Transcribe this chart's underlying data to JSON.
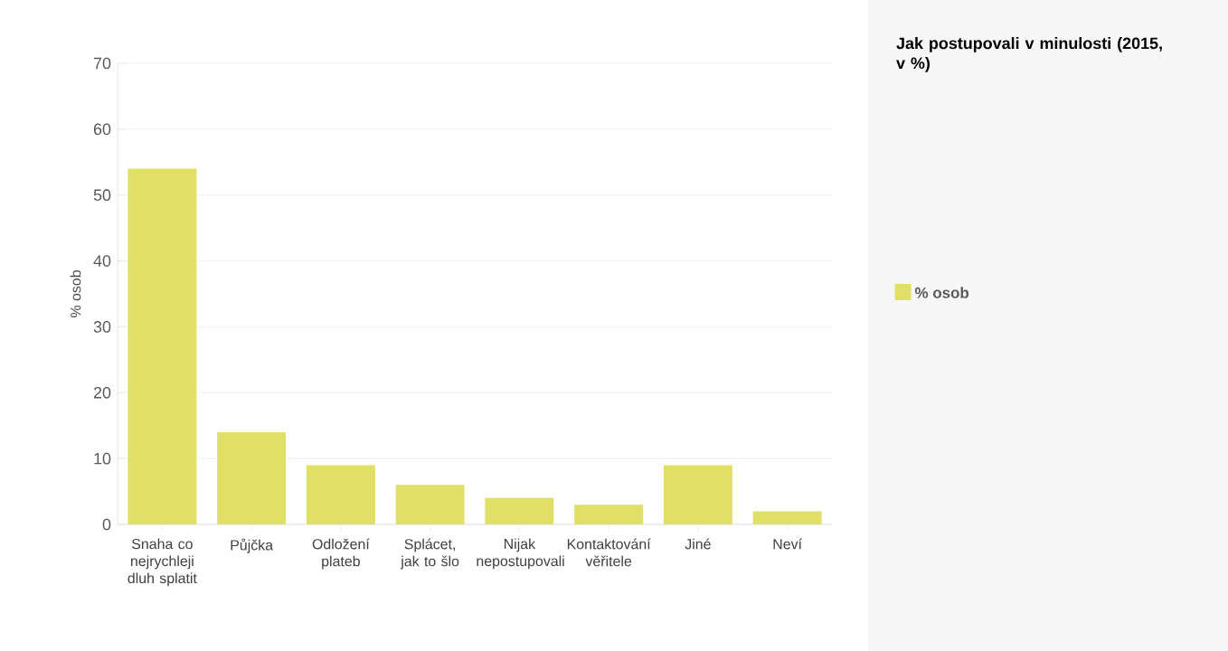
{
  "chart_data": {
    "type": "bar",
    "title": "Jak postupovali v minulosti (2015, v %)",
    "ylabel": "% osob",
    "categories": [
      "Snaha co nejrychleji dluh splatit",
      "Půjčka",
      "Odložení plateb",
      "Splácet, jak to šlo",
      "Nijak nepostupovali",
      "Kontaktování věřitele",
      "Jiné",
      "Neví"
    ],
    "series": [
      {
        "name": "% osob",
        "color": "#dfe065",
        "values": [
          54,
          14,
          9,
          6,
          4,
          3,
          9,
          2
        ]
      }
    ],
    "ylim": [
      0,
      70
    ],
    "yticks": [
      0,
      10,
      20,
      30,
      40,
      50,
      60,
      70
    ],
    "grid": "y",
    "legend": "right"
  }
}
